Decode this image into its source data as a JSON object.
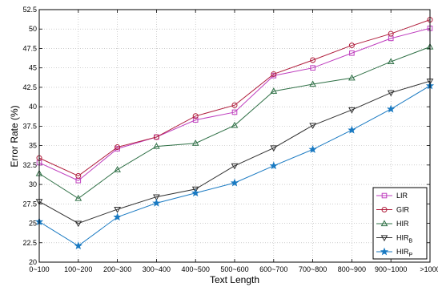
{
  "chart_data": {
    "type": "line",
    "title": "",
    "xlabel": "Text Length",
    "ylabel": "Error Rate (%)",
    "categories": [
      "0~100",
      "100~200",
      "200~300",
      "300~400",
      "400~500",
      "500~600",
      "600~700",
      "700~800",
      "800~900",
      "900~1000",
      ">1000"
    ],
    "ylim": [
      20,
      52.5
    ],
    "yticks": [
      "20",
      "22.5",
      "25",
      "27.5",
      "30",
      "32.5",
      "35",
      "37.5",
      "40",
      "42.5",
      "45",
      "47.5",
      "50",
      "52.5"
    ],
    "grid": true,
    "legend_position": "bottom-right",
    "series": [
      {
        "name": "LIR",
        "sub": "",
        "marker": "square",
        "color": "#bf3fbf",
        "values": [
          32.8,
          30.5,
          34.6,
          36.1,
          38.3,
          39.3,
          44.0,
          45.0,
          46.9,
          48.8,
          50.1
        ]
      },
      {
        "name": "GIR",
        "sub": "",
        "marker": "circle",
        "color": "#b01e3c",
        "values": [
          33.4,
          31.1,
          34.8,
          36.1,
          38.8,
          40.2,
          44.2,
          46.0,
          47.9,
          49.4,
          51.2
        ]
      },
      {
        "name": "HIR",
        "sub": "",
        "marker": "triangle-up",
        "color": "#2f7046",
        "values": [
          31.4,
          28.2,
          31.9,
          34.9,
          35.3,
          37.6,
          42.0,
          42.9,
          43.7,
          45.8,
          47.7
        ]
      },
      {
        "name": "HIR",
        "sub": "B",
        "marker": "triangle-down",
        "color": "#303030",
        "values": [
          27.8,
          25.0,
          26.8,
          28.4,
          29.4,
          32.4,
          34.7,
          37.6,
          39.6,
          41.8,
          43.3
        ]
      },
      {
        "name": "HIR",
        "sub": "P",
        "marker": "star",
        "color": "#1a7ac2",
        "values": [
          25.2,
          22.1,
          25.8,
          27.6,
          28.9,
          30.2,
          32.4,
          34.5,
          37.0,
          39.7,
          42.7
        ]
      }
    ]
  }
}
